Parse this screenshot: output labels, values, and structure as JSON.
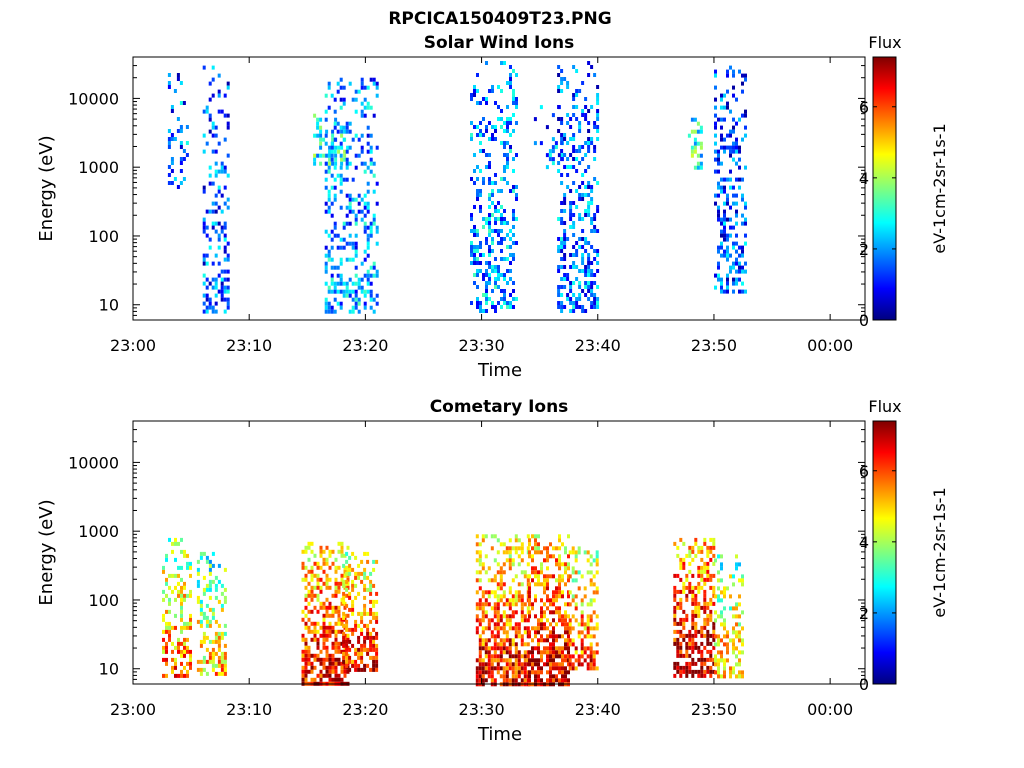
{
  "figure": {
    "title": "RPCICA150409T23.PNG"
  },
  "chart_data": [
    {
      "type": "heatmap",
      "title": "Solar Wind Ions",
      "xlabel": "Time",
      "ylabel": "Energy (eV)",
      "y_scale": "log",
      "ylim": [
        6,
        40000
      ],
      "xlim": [
        "23:00",
        "00:03"
      ],
      "x_ticks": [
        "23:00",
        "23:10",
        "23:20",
        "23:30",
        "23:40",
        "23:50",
        "00:00"
      ],
      "y_ticks": [
        "10",
        "100",
        "1000",
        "10000"
      ],
      "colorbar": {
        "title": "Flux",
        "label": "eV-1cm-2sr-1s-1",
        "range": [
          0,
          7.4
        ],
        "ticks": [
          "0",
          "2",
          "4",
          "6"
        ],
        "colormap": "jet"
      },
      "bursts": [
        {
          "start_min": 3.0,
          "end_min": 4.8,
          "e_min": 500,
          "e_max": 35000,
          "flux_mean": 1.6,
          "density": 0.18
        },
        {
          "start_min": 6.0,
          "end_min": 8.2,
          "e_min": 8,
          "e_max": 30000,
          "flux_mean": 1.4,
          "density": 0.32
        },
        {
          "start_min": 15.5,
          "end_min": 18.5,
          "e_min": 1200,
          "e_max": 6000,
          "flux_mean": 2.6,
          "density": 0.35
        },
        {
          "start_min": 16.5,
          "end_min": 21.0,
          "e_min": 8,
          "e_max": 20000,
          "flux_mean": 1.8,
          "density": 0.33
        },
        {
          "start_min": 29.0,
          "end_min": 33.0,
          "e_min": 8,
          "e_max": 35000,
          "flux_mean": 1.8,
          "density": 0.3
        },
        {
          "start_min": 34.5,
          "end_min": 37.0,
          "e_min": 1000,
          "e_max": 8000,
          "flux_mean": 1.6,
          "density": 0.15
        },
        {
          "start_min": 36.5,
          "end_min": 40.0,
          "e_min": 8,
          "e_max": 35000,
          "flux_mean": 1.5,
          "density": 0.32
        },
        {
          "start_min": 47.5,
          "end_min": 49.0,
          "e_min": 1000,
          "e_max": 6000,
          "flux_mean": 2.8,
          "density": 0.35
        },
        {
          "start_min": 50.0,
          "end_min": 52.8,
          "e_min": 15,
          "e_max": 30000,
          "flux_mean": 1.3,
          "density": 0.36
        }
      ]
    },
    {
      "type": "heatmap",
      "title": "Cometary Ions",
      "xlabel": "Time",
      "ylabel": "Energy (eV)",
      "y_scale": "log",
      "ylim": [
        6,
        40000
      ],
      "xlim": [
        "23:00",
        "00:03"
      ],
      "x_ticks": [
        "23:00",
        "23:10",
        "23:20",
        "23:30",
        "23:40",
        "23:50",
        "00:00"
      ],
      "y_ticks": [
        "10",
        "100",
        "1000",
        "10000"
      ],
      "colorbar": {
        "title": "Flux",
        "label": "eV-1cm-2sr-1s-1",
        "range": [
          0,
          7.4
        ],
        "ticks": [
          "0",
          "2",
          "4",
          "6"
        ],
        "colormap": "jet"
      },
      "bursts": [
        {
          "start_min": 2.5,
          "end_min": 5.0,
          "e_min": 8,
          "e_max": 800,
          "flux_mean": 3.6,
          "density": 0.4
        },
        {
          "start_min": 5.5,
          "end_min": 8.0,
          "e_min": 8,
          "e_max": 500,
          "flux_mean": 3.0,
          "density": 0.38
        },
        {
          "start_min": 14.5,
          "end_min": 18.5,
          "e_min": 6,
          "e_max": 700,
          "flux_mean": 4.6,
          "density": 0.55
        },
        {
          "start_min": 18.0,
          "end_min": 21.0,
          "e_min": 10,
          "e_max": 500,
          "flux_mean": 4.3,
          "density": 0.5
        },
        {
          "start_min": 29.5,
          "end_min": 34.0,
          "e_min": 6,
          "e_max": 900,
          "flux_mean": 4.5,
          "density": 0.55
        },
        {
          "start_min": 34.0,
          "end_min": 37.5,
          "e_min": 6,
          "e_max": 900,
          "flux_mean": 4.8,
          "density": 0.55
        },
        {
          "start_min": 37.5,
          "end_min": 40.0,
          "e_min": 10,
          "e_max": 600,
          "flux_mean": 4.0,
          "density": 0.45
        },
        {
          "start_min": 46.5,
          "end_min": 50.0,
          "e_min": 8,
          "e_max": 800,
          "flux_mean": 4.9,
          "density": 0.55
        },
        {
          "start_min": 50.0,
          "end_min": 52.5,
          "e_min": 8,
          "e_max": 600,
          "flux_mean": 3.2,
          "density": 0.4
        }
      ]
    }
  ]
}
